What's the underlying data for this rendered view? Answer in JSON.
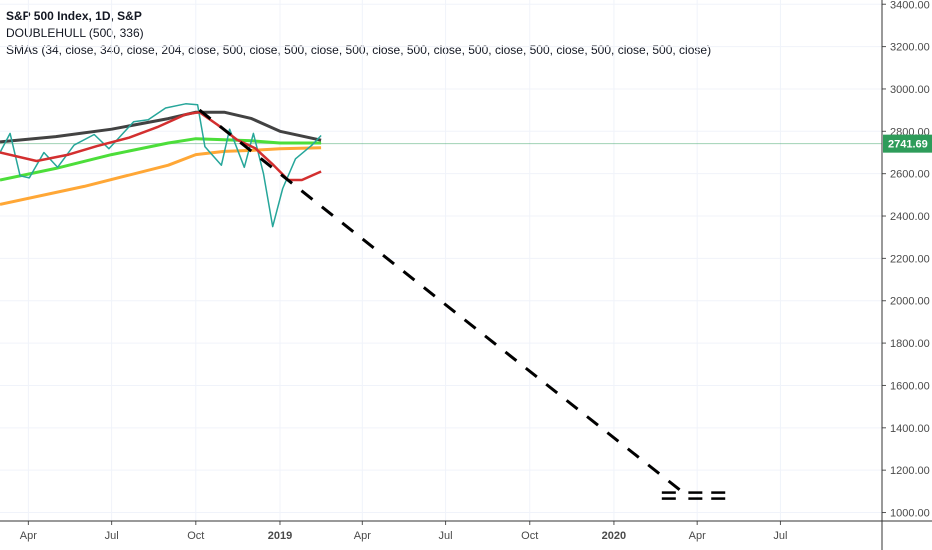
{
  "legend": {
    "symbol": "S&P 500 Index, 1D, S&P",
    "indicator1": "DOUBLEHULL (500, 336)",
    "indicator2": "SMAs (34, close, 340, close, 204, close, 500, close, 500, close, 500, close, 500, close, 500, close, 500, close, 500, close, 500, close)"
  },
  "colors": {
    "price": "#26a69a",
    "price_down": "#ef5350",
    "sma_red": "#d32f2f",
    "sma_dark": "#424242",
    "sma_green": "#4cde3a",
    "sma_orange": "#ffa736",
    "last_price": "#2e9c5a",
    "projection": "#000000"
  },
  "chart_data": {
    "type": "line",
    "title": "S&P 500 Index, 1D, S&P",
    "xlabel": "",
    "ylabel": "",
    "x_range": [
      "2018-03-01",
      "2020-10-20"
    ],
    "ylim": [
      960,
      3420
    ],
    "y_ticks": [
      1000,
      1200,
      1400,
      1600,
      1800,
      2000,
      2200,
      2400,
      2600,
      2800,
      3000,
      3200,
      3400
    ],
    "y_tick_labels": [
      "1000.00",
      "1200.00",
      "1400.00",
      "1600.00",
      "1800.00",
      "2000.00",
      "2200.00",
      "2400.00",
      "2600.00",
      "2800.00",
      "3000.00",
      "3200.00",
      "3400.00"
    ],
    "x_ticks": [
      {
        "date": "2018-04-01",
        "label": "Apr",
        "bold": false
      },
      {
        "date": "2018-07-01",
        "label": "Jul",
        "bold": false
      },
      {
        "date": "2018-10-01",
        "label": "Oct",
        "bold": false
      },
      {
        "date": "2019-01-01",
        "label": "2019",
        "bold": true
      },
      {
        "date": "2019-04-01",
        "label": "Apr",
        "bold": false
      },
      {
        "date": "2019-07-01",
        "label": "Jul",
        "bold": false
      },
      {
        "date": "2019-10-01",
        "label": "Oct",
        "bold": false
      },
      {
        "date": "2020-01-01",
        "label": "2020",
        "bold": true
      },
      {
        "date": "2020-04-01",
        "label": "Apr",
        "bold": false
      },
      {
        "date": "2020-07-01",
        "label": "Jul",
        "bold": false
      }
    ],
    "last_price": 2741.69,
    "last_price_label": "2741.69",
    "grid": true,
    "price": {
      "x": [
        "2018-03-01",
        "2018-03-12",
        "2018-03-23",
        "2018-04-02",
        "2018-04-18",
        "2018-05-03",
        "2018-05-21",
        "2018-06-12",
        "2018-06-28",
        "2018-07-25",
        "2018-08-10",
        "2018-08-29",
        "2018-09-20",
        "2018-10-03",
        "2018-10-11",
        "2018-10-29",
        "2018-11-07",
        "2018-11-23",
        "2018-12-03",
        "2018-12-14",
        "2018-12-24",
        "2019-01-04",
        "2019-01-18",
        "2019-02-05",
        "2019-02-15"
      ],
      "values": [
        2700,
        2790,
        2590,
        2580,
        2700,
        2630,
        2735,
        2785,
        2718,
        2845,
        2855,
        2910,
        2930,
        2925,
        2728,
        2640,
        2810,
        2630,
        2790,
        2600,
        2350,
        2530,
        2670,
        2735,
        2780
      ]
    },
    "series": [
      {
        "id": "sma_red",
        "x": [
          "2018-03-01",
          "2018-04-10",
          "2018-05-15",
          "2018-06-15",
          "2018-07-20",
          "2018-08-20",
          "2018-09-20",
          "2018-10-05",
          "2018-10-25",
          "2018-11-15",
          "2018-12-05",
          "2018-12-25",
          "2019-01-10",
          "2019-01-25",
          "2019-02-15"
        ],
        "values": [
          2700,
          2660,
          2690,
          2730,
          2770,
          2820,
          2880,
          2890,
          2830,
          2760,
          2720,
          2640,
          2570,
          2570,
          2610
        ]
      },
      {
        "id": "sma_dark",
        "x": [
          "2018-03-01",
          "2018-05-01",
          "2018-07-01",
          "2018-09-01",
          "2018-10-01",
          "2018-11-01",
          "2018-12-01",
          "2019-01-01",
          "2019-02-15"
        ],
        "values": [
          2750,
          2775,
          2810,
          2860,
          2890,
          2890,
          2860,
          2800,
          2758
        ]
      },
      {
        "id": "sma_green",
        "x": [
          "2018-03-01",
          "2018-05-01",
          "2018-07-01",
          "2018-09-01",
          "2018-10-01",
          "2018-11-01",
          "2018-12-01",
          "2019-01-01",
          "2019-02-15"
        ],
        "values": [
          2570,
          2625,
          2690,
          2745,
          2765,
          2760,
          2755,
          2745,
          2745
        ]
      },
      {
        "id": "sma_orange",
        "x": [
          "2018-03-01",
          "2018-06-01",
          "2018-09-01",
          "2018-10-01",
          "2018-11-01",
          "2018-12-01",
          "2019-01-01",
          "2019-02-15"
        ],
        "values": [
          2455,
          2540,
          2640,
          2690,
          2705,
          2710,
          2718,
          2722
        ]
      },
      {
        "id": "projection",
        "x": [
          "2018-10-05",
          "2020-03-15"
        ],
        "values": [
          2900,
          1100
        ]
      }
    ],
    "equals_marks": [
      {
        "date": "2020-03-01",
        "value": 1080
      },
      {
        "date": "2020-03-30",
        "value": 1080
      },
      {
        "date": "2020-04-24",
        "value": 1080
      }
    ]
  }
}
